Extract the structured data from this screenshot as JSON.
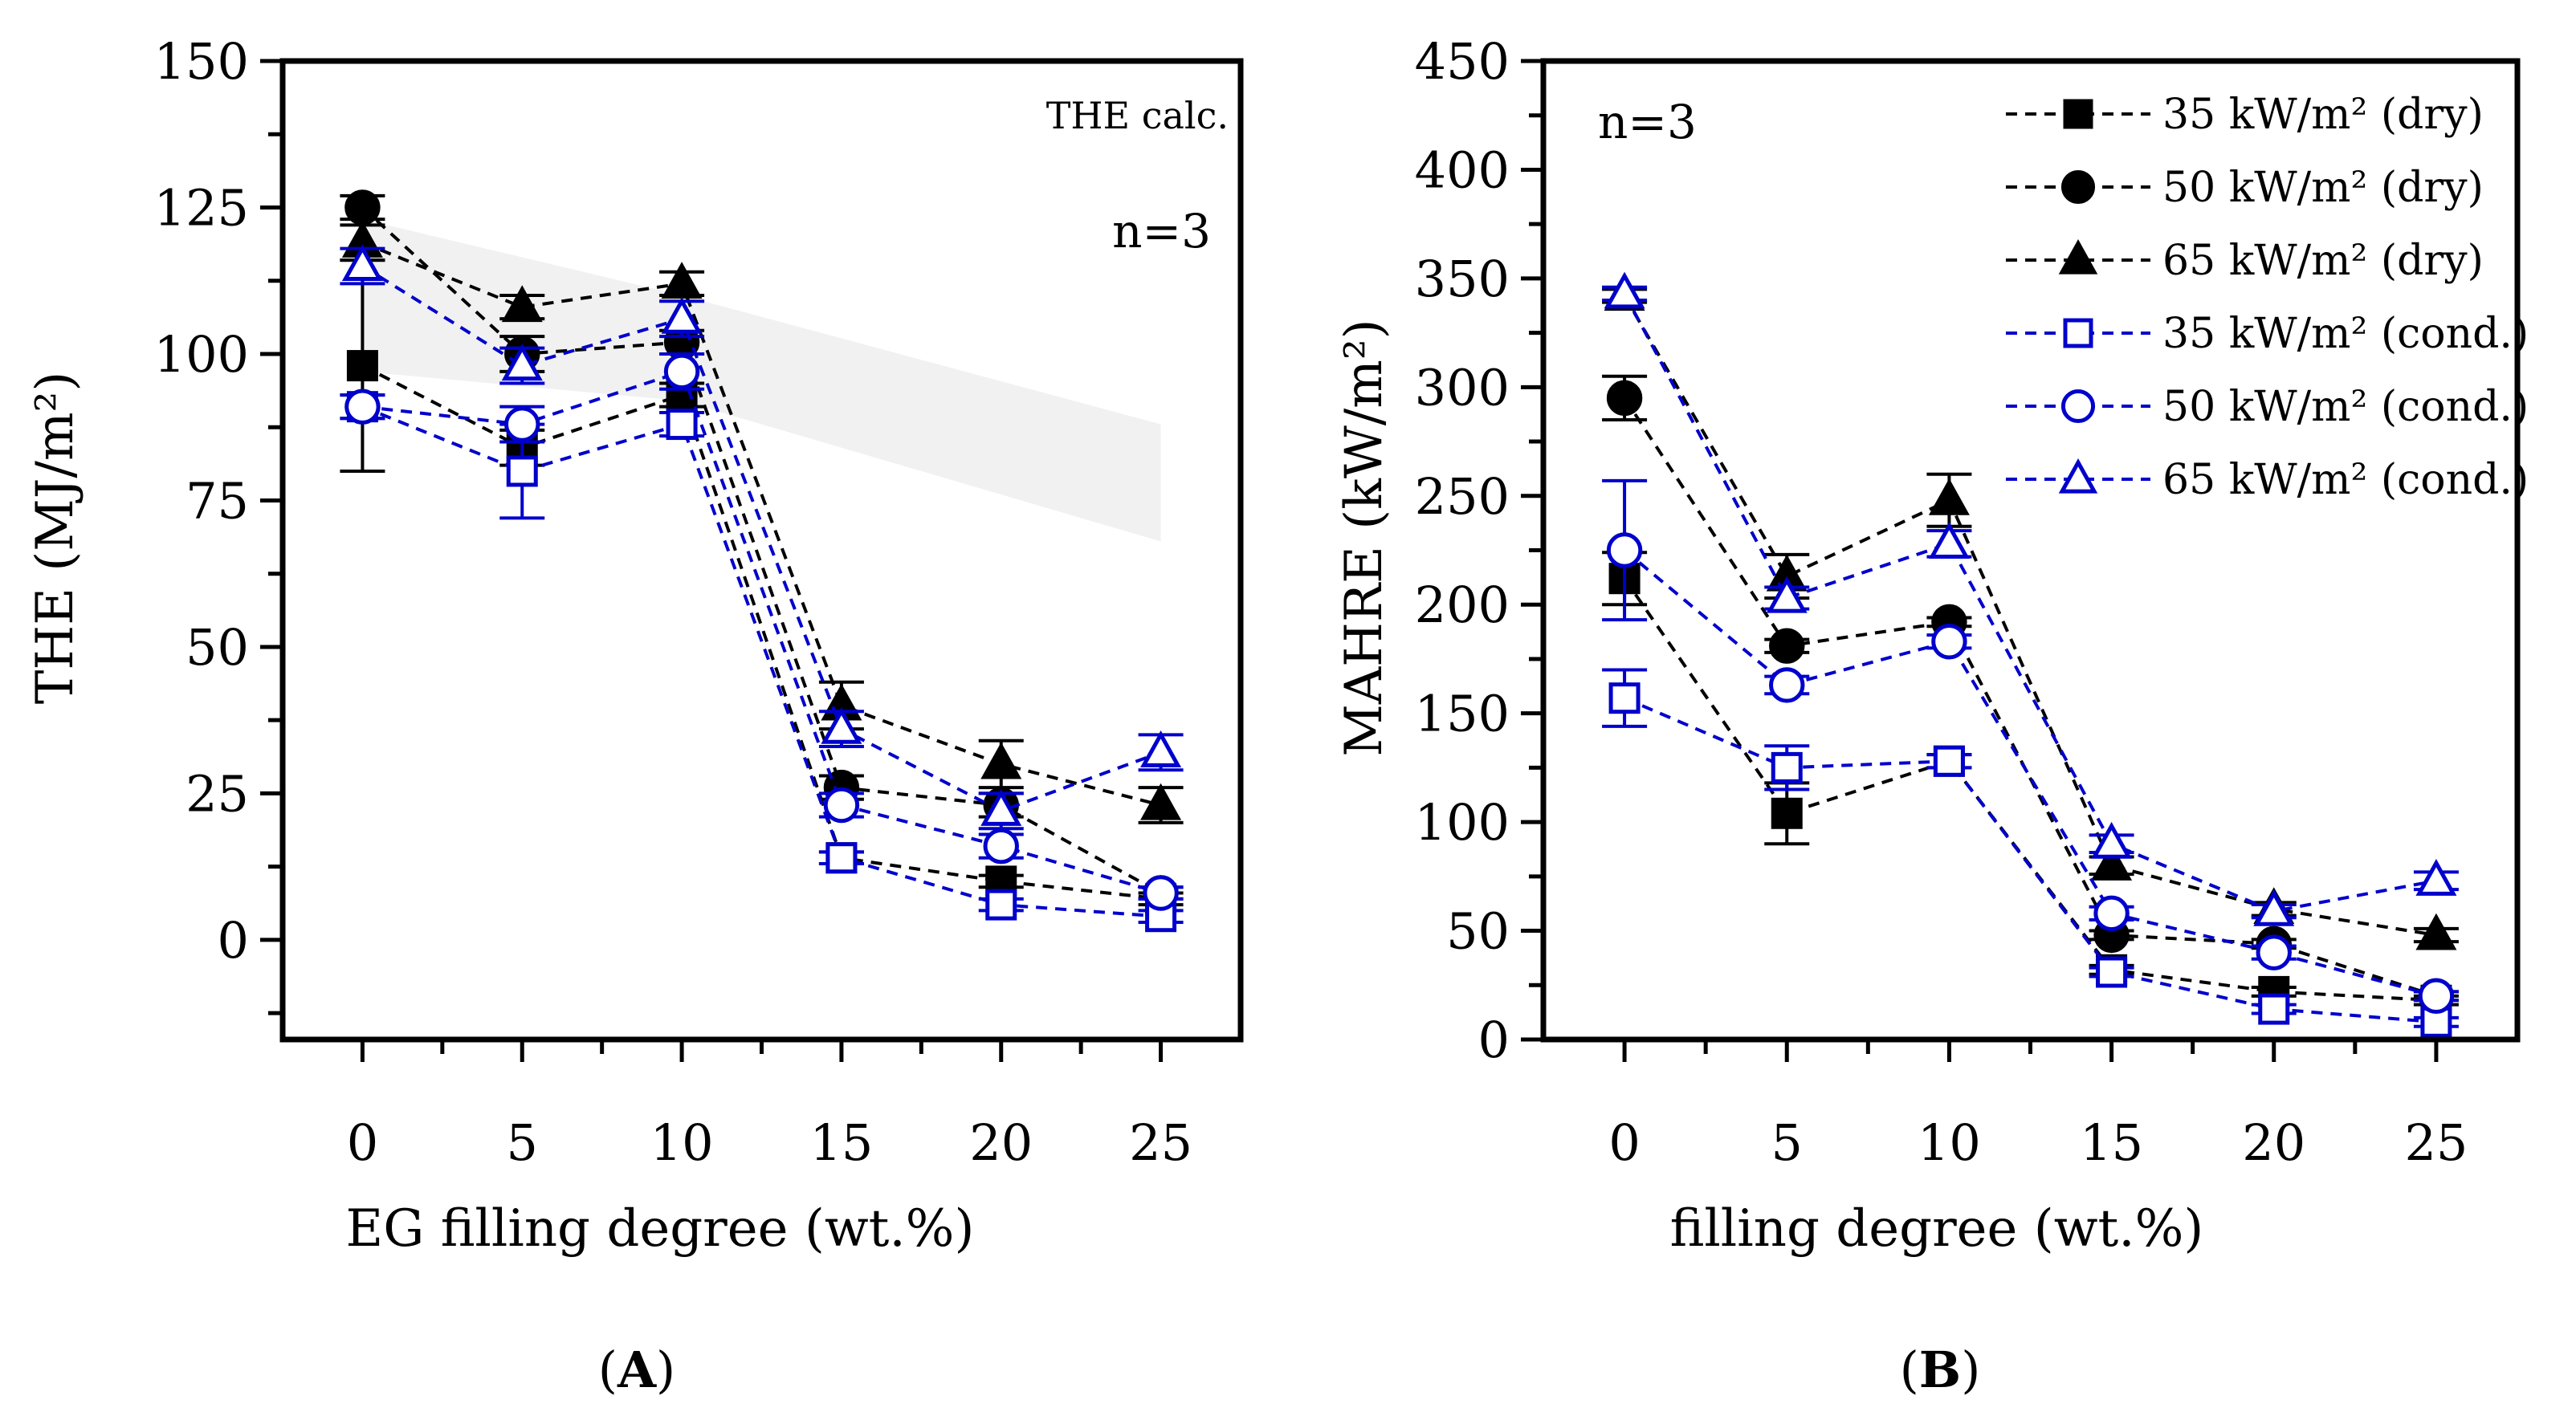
{
  "chart_data": [
    {
      "panel": "A",
      "type": "line",
      "title": "",
      "xlabel": "EG filling degree (wt.%)",
      "ylabel": "THE (MJ/m²)",
      "x": [
        0,
        5,
        10,
        15,
        20,
        25
      ],
      "xlim": [
        -2.5,
        27.5
      ],
      "ylim": [
        -17,
        150
      ],
      "xticks": [
        "0",
        "5",
        "10",
        "15",
        "20",
        "25"
      ],
      "yticks": [
        "0",
        "25",
        "50",
        "75",
        "100",
        "125",
        "150"
      ],
      "annotations": {
        "n": "n=3",
        "calc": "THE calc."
      },
      "calc_band": {
        "x": [
          0,
          10,
          25
        ],
        "upper": [
          123,
          110,
          88
        ],
        "lower": [
          97,
          92,
          68
        ]
      },
      "series": [
        {
          "name": "35 kW/m² (dry)",
          "marker": "square",
          "filled": true,
          "color": "#000000",
          "values": [
            98,
            84,
            93,
            14,
            10,
            7
          ],
          "errors": [
            18,
            3,
            2,
            1,
            1,
            1
          ]
        },
        {
          "name": "50 kW/m² (dry)",
          "marker": "circle",
          "filled": true,
          "color": "#000000",
          "values": [
            125,
            100,
            102,
            26,
            23,
            8
          ],
          "errors": [
            2,
            3,
            2,
            2,
            2,
            1
          ]
        },
        {
          "name": "65 kW/m² (dry)",
          "marker": "triangle",
          "filled": true,
          "color": "#000000",
          "values": [
            119,
            108,
            112,
            40,
            30,
            23
          ],
          "errors": [
            3,
            2,
            2,
            4,
            4,
            3
          ]
        },
        {
          "name": "35 kW/m² (cond.)",
          "marker": "square",
          "filled": false,
          "color": "#0000cc",
          "values": [
            91,
            80,
            88,
            14,
            6,
            4
          ],
          "errors": [
            2,
            8,
            2,
            1,
            1,
            1
          ]
        },
        {
          "name": "50 kW/m² (cond.)",
          "marker": "circle",
          "filled": false,
          "color": "#0000cc",
          "values": [
            91,
            88,
            97,
            23,
            16,
            8
          ],
          "errors": [
            2,
            3,
            3,
            2,
            2,
            1
          ]
        },
        {
          "name": "65 kW/m² (cond.)",
          "marker": "triangle",
          "filled": false,
          "color": "#0000cc",
          "values": [
            115,
            98,
            106,
            36,
            22,
            32
          ],
          "errors": [
            3,
            3,
            3,
            3,
            3,
            3
          ]
        }
      ]
    },
    {
      "panel": "B",
      "type": "line",
      "title": "",
      "xlabel": "filling degree (wt.%)",
      "ylabel": "MAHRE (kW/m²)",
      "x": [
        0,
        5,
        10,
        15,
        20,
        25
      ],
      "xlim": [
        -2.5,
        27.5
      ],
      "ylim": [
        0,
        450
      ],
      "xticks": [
        "0",
        "5",
        "10",
        "15",
        "20",
        "25"
      ],
      "yticks": [
        "0",
        "50",
        "100",
        "150",
        "200",
        "250",
        "300",
        "350",
        "400",
        "450"
      ],
      "annotations": {
        "n": "n=3"
      },
      "legend_position": "top-right",
      "series": [
        {
          "name": "35 kW/m² (dry)",
          "marker": "square",
          "filled": true,
          "color": "#000000",
          "values": [
            212,
            104,
            128,
            32,
            22,
            18
          ],
          "errors": [
            12,
            14,
            3,
            2,
            2,
            2
          ]
        },
        {
          "name": "50 kW/m² (dry)",
          "marker": "circle",
          "filled": true,
          "color": "#000000",
          "values": [
            295,
            181,
            192,
            48,
            44,
            20
          ],
          "errors": [
            10,
            3,
            2,
            2,
            2,
            2
          ]
        },
        {
          "name": "65 kW/m² (dry)",
          "marker": "triangle",
          "filled": true,
          "color": "#000000",
          "values": [
            342,
            213,
            248,
            80,
            60,
            48
          ],
          "errors": [
            3,
            10,
            12,
            4,
            3,
            3
          ]
        },
        {
          "name": "35 kW/m² (cond.)",
          "marker": "square",
          "filled": false,
          "color": "#0000cc",
          "values": [
            157,
            125,
            128,
            31,
            14,
            8
          ],
          "errors": [
            13,
            10,
            3,
            2,
            2,
            2
          ]
        },
        {
          "name": "50 kW/m² (cond.)",
          "marker": "circle",
          "filled": false,
          "color": "#0000cc",
          "values": [
            225,
            163,
            183,
            58,
            40,
            20
          ],
          "errors": [
            32,
            4,
            3,
            3,
            3,
            2
          ]
        },
        {
          "name": "65 kW/m² (cond.)",
          "marker": "triangle",
          "filled": false,
          "color": "#0000cc",
          "values": [
            343,
            203,
            228,
            90,
            59,
            73
          ],
          "errors": [
            3,
            5,
            6,
            4,
            3,
            4
          ]
        }
      ]
    }
  ],
  "panel_labels": {
    "A": {
      "open": "(",
      "letter": "A",
      "close": ")"
    },
    "B": {
      "open": "(",
      "letter": "B",
      "close": ")"
    }
  }
}
